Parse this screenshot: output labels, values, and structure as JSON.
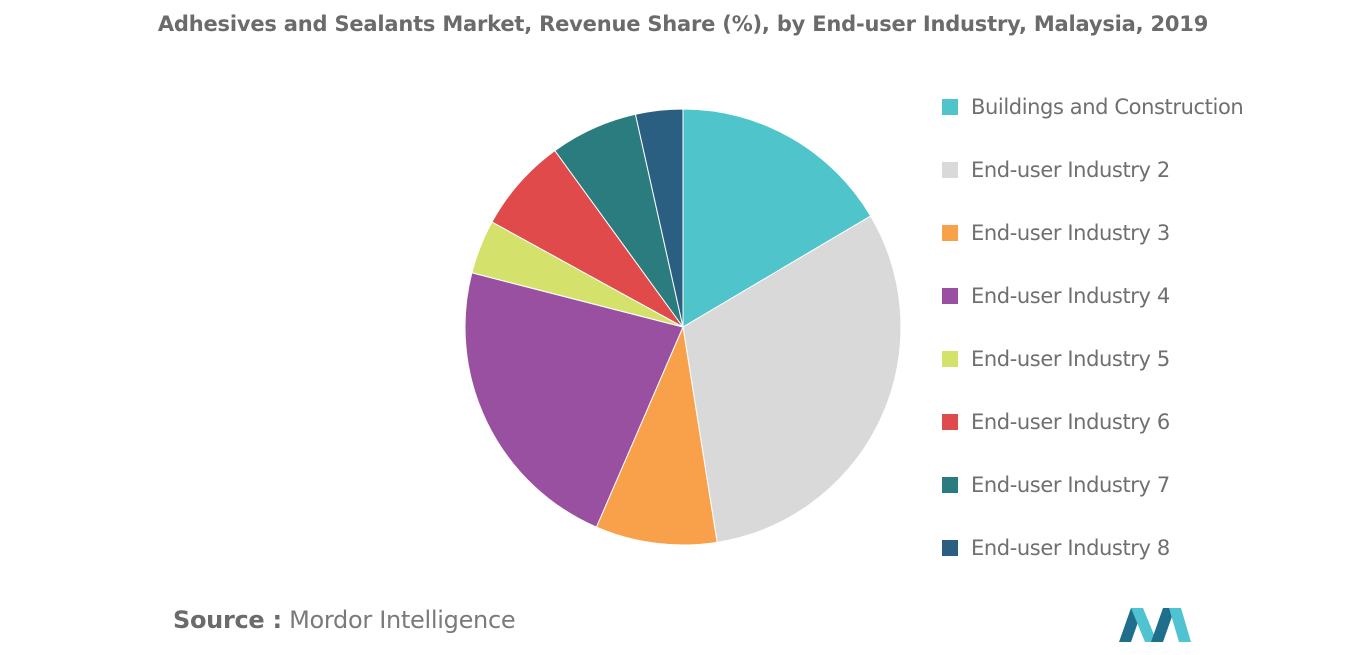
{
  "title": "Adhesives and Sealants Market, Revenue Share (%), by End-user Industry, Malaysia, 2019",
  "source": {
    "prefix": "Source :",
    "text": "Mordor Intelligence"
  },
  "logo": {
    "icon": "mordor-intelligence-logo",
    "colors": [
      "#1f6e8c",
      "#4fc3d1"
    ]
  },
  "chart_data": {
    "type": "pie",
    "title": "Adhesives and Sealants Market, Revenue Share (%), by End-user Industry, Malaysia, 2019",
    "start_angle_deg": 0,
    "direction": "clockwise",
    "legend_position": "right",
    "slices": [
      {
        "label": "Buildings and Construction",
        "value": 16.5,
        "color": "#4fc4ca"
      },
      {
        "label": "End-user Industry 2",
        "value": 31.0,
        "color": "#d9d9d9"
      },
      {
        "label": "End-user Industry 3",
        "value": 9.0,
        "color": "#f9a04b"
      },
      {
        "label": "End-user Industry 4",
        "value": 22.5,
        "color": "#9a50a0"
      },
      {
        "label": "End-user Industry 5",
        "value": 4.0,
        "color": "#d4e26b"
      },
      {
        "label": "End-user Industry 6",
        "value": 7.0,
        "color": "#e04a4a"
      },
      {
        "label": "End-user Industry 7",
        "value": 6.5,
        "color": "#2a7c7e"
      },
      {
        "label": "End-user Industry 8",
        "value": 3.5,
        "color": "#2b5f82"
      }
    ]
  }
}
